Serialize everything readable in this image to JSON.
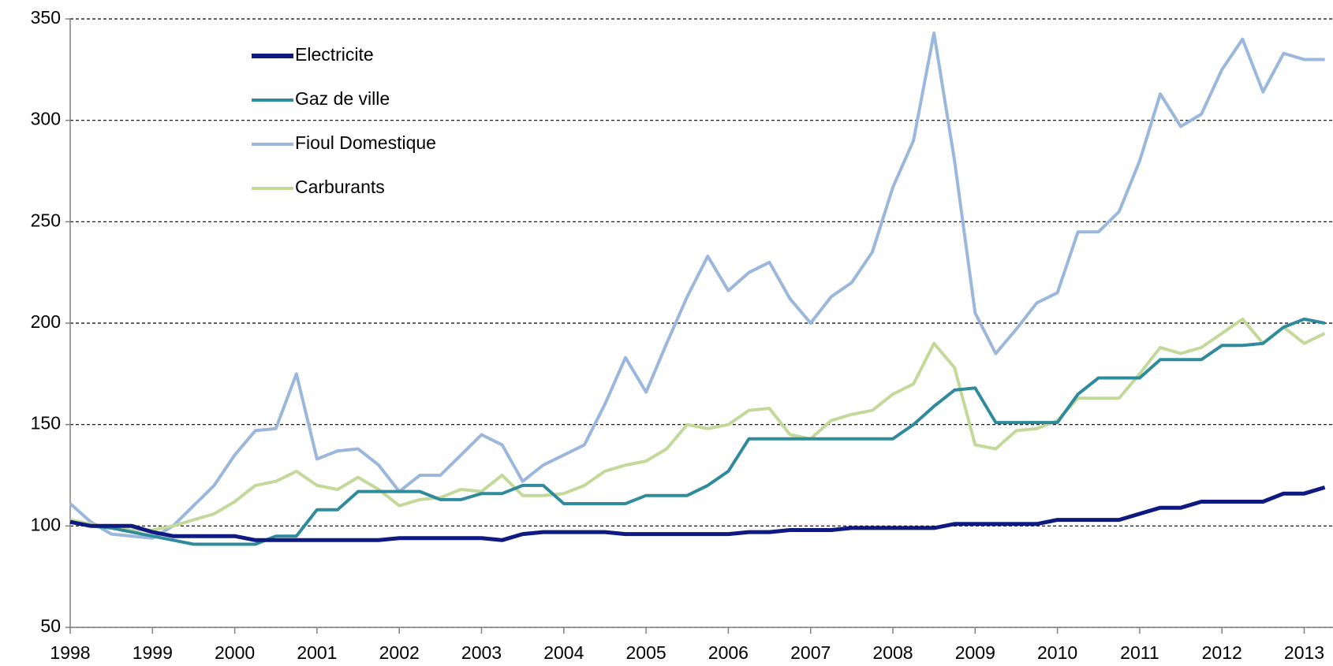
{
  "chart_data": {
    "type": "line",
    "x": [
      1998,
      1998.25,
      1998.5,
      1998.75,
      1999,
      1999.25,
      1999.5,
      1999.75,
      2000,
      2000.25,
      2000.5,
      2000.75,
      2001,
      2001.25,
      2001.5,
      2001.75,
      2002,
      2002.25,
      2002.5,
      2002.75,
      2003,
      2003.25,
      2003.5,
      2003.75,
      2004,
      2004.25,
      2004.5,
      2004.75,
      2005,
      2005.25,
      2005.5,
      2005.75,
      2006,
      2006.25,
      2006.5,
      2006.75,
      2007,
      2007.25,
      2007.5,
      2007.75,
      2008,
      2008.25,
      2008.5,
      2008.75,
      2009,
      2009.25,
      2009.5,
      2009.75,
      2010,
      2010.25,
      2010.5,
      2010.75,
      2011,
      2011.25,
      2011.5,
      2011.75,
      2012,
      2012.25,
      2012.5,
      2012.75,
      2013,
      2013.25
    ],
    "series": [
      {
        "name": "Electricite",
        "color": "#0f1a80",
        "values": [
          102,
          100,
          100,
          100,
          97,
          95,
          95,
          95,
          95,
          93,
          93,
          93,
          93,
          93,
          93,
          93,
          94,
          94,
          94,
          94,
          94,
          93,
          96,
          97,
          97,
          97,
          97,
          96,
          96,
          96,
          96,
          96,
          96,
          97,
          97,
          98,
          98,
          98,
          99,
          99,
          99,
          99,
          99,
          101,
          101,
          101,
          101,
          101,
          103,
          103,
          103,
          103,
          106,
          109,
          109,
          112,
          112,
          112,
          112,
          116,
          116,
          119
        ]
      },
      {
        "name": "Gaz de ville",
        "color": "#2f8b9b",
        "values": [
          102,
          100,
          99,
          97,
          95,
          93,
          91,
          91,
          91,
          91,
          95,
          95,
          108,
          108,
          117,
          117,
          117,
          117,
          113,
          113,
          116,
          116,
          120,
          120,
          111,
          111,
          111,
          111,
          115,
          115,
          115,
          120,
          127,
          143,
          143,
          143,
          143,
          143,
          143,
          143,
          143,
          150,
          159,
          167,
          168,
          151,
          151,
          151,
          151,
          165,
          173,
          173,
          173,
          182,
          182,
          182,
          189,
          189,
          190,
          198,
          202,
          200
        ]
      },
      {
        "name": "Fioul Domestique",
        "color": "#9bb7dc",
        "values": [
          111,
          102,
          96,
          95,
          94,
          100,
          110,
          120,
          135,
          147,
          148,
          175,
          133,
          137,
          138,
          130,
          117,
          125,
          125,
          135,
          145,
          140,
          122,
          130,
          135,
          140,
          160,
          183,
          166,
          190,
          213,
          233,
          216,
          225,
          230,
          212,
          200,
          213,
          220,
          235,
          267,
          290,
          343,
          280,
          205,
          185,
          197,
          210,
          215,
          245,
          245,
          255,
          280,
          313,
          297,
          303,
          325,
          340,
          314,
          333,
          330,
          330
        ]
      },
      {
        "name": "Carburants",
        "color": "#c3d99a",
        "values": [
          103,
          101,
          99,
          98,
          98,
          100,
          103,
          106,
          112,
          120,
          122,
          127,
          120,
          118,
          124,
          118,
          110,
          113,
          114,
          118,
          117,
          125,
          115,
          115,
          116,
          120,
          127,
          130,
          132,
          138,
          150,
          148,
          150,
          157,
          158,
          145,
          143,
          152,
          155,
          157,
          165,
          170,
          190,
          178,
          140,
          138,
          147,
          148,
          152,
          163,
          163,
          163,
          175,
          188,
          185,
          188,
          195,
          202,
          190,
          198,
          190,
          195
        ]
      }
    ],
    "xlim": [
      1998,
      2013.35
    ],
    "xticks": [
      1998,
      1999,
      2000,
      2001,
      2002,
      2003,
      2004,
      2005,
      2006,
      2007,
      2008,
      2009,
      2010,
      2011,
      2012,
      2013
    ],
    "ylim": [
      50,
      350
    ],
    "yticks": [
      50,
      100,
      150,
      200,
      250,
      300,
      350
    ],
    "grid": true,
    "legend_position": "upper-left"
  }
}
